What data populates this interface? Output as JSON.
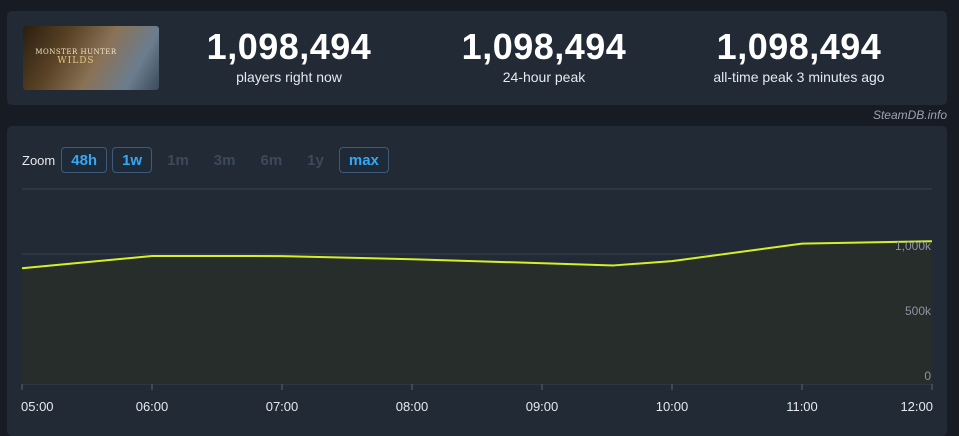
{
  "stats": {
    "game_banner": {
      "title_line1": "MONSTER HUNTER",
      "title_line2": "WILDS"
    },
    "items": [
      {
        "value": "1,098,494",
        "label": "players right now"
      },
      {
        "value": "1,098,494",
        "label": "24-hour peak"
      },
      {
        "value": "1,098,494",
        "label": "all-time peak 3 minutes ago"
      }
    ]
  },
  "credit": "SteamDB.info",
  "zoom": {
    "label": "Zoom",
    "options": [
      {
        "label": "48h",
        "active": true
      },
      {
        "label": "1w",
        "active": true
      },
      {
        "label": "1m",
        "active": false
      },
      {
        "label": "3m",
        "active": false
      },
      {
        "label": "6m",
        "active": false
      },
      {
        "label": "1y",
        "active": false
      },
      {
        "label": "max",
        "active": true
      }
    ]
  },
  "colors": {
    "line": "#d6f028",
    "area": "#262d2a",
    "grid": "#3a4350",
    "active_zoom": "#36a7f2"
  },
  "chart_data": {
    "type": "line",
    "x": [
      "05:00",
      "06:00",
      "07:00",
      "08:00",
      "09:00",
      "10:00",
      "11:00",
      "12:00"
    ],
    "y_ticks": [
      {
        "value": 0,
        "label": "0"
      },
      {
        "value": 500000,
        "label": "500k"
      },
      {
        "value": 1000000,
        "label": "1,000k"
      }
    ],
    "ylim": [
      0,
      1500000
    ],
    "grid": true,
    "series": [
      {
        "values": [
          {
            "t": 0,
            "y": 890000
          },
          {
            "t": 1,
            "y": 985000
          },
          {
            "t": 2,
            "y": 984000
          },
          {
            "t": 3,
            "y": 960000
          },
          {
            "t": 4.55,
            "y": 912000
          },
          {
            "t": 5,
            "y": 945000
          },
          {
            "t": 6,
            "y": 1080000
          },
          {
            "t": 7,
            "y": 1098494
          }
        ]
      }
    ]
  }
}
